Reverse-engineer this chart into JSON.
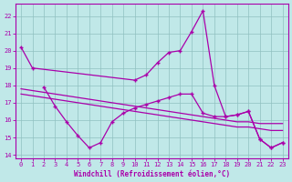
{
  "bg_color": "#c0e8e8",
  "grid_color": "#90c0c0",
  "line_color": "#aa00aa",
  "marker": "+",
  "xlabel": "Windchill (Refroidissement éolien,°C)",
  "ylabel_ticks": [
    14,
    15,
    16,
    17,
    18,
    19,
    20,
    21,
    22
  ],
  "xlim": [
    -0.5,
    23.5
  ],
  "ylim": [
    13.8,
    22.7
  ],
  "xticks": [
    0,
    1,
    2,
    3,
    4,
    5,
    6,
    7,
    8,
    9,
    10,
    11,
    12,
    13,
    14,
    15,
    16,
    17,
    18,
    19,
    20,
    21,
    22,
    23
  ],
  "curve1_x": [
    0,
    1,
    10,
    11,
    12,
    13,
    14,
    15,
    16,
    17,
    18,
    19,
    20,
    21,
    22,
    23
  ],
  "curve1_y": [
    20.2,
    19.0,
    18.3,
    18.6,
    19.3,
    19.9,
    20.0,
    21.1,
    22.3,
    18.0,
    16.2,
    16.3,
    16.5,
    14.9,
    14.4,
    14.7
  ],
  "curve2_x": [
    2,
    3,
    4,
    5,
    6,
    7,
    8,
    9,
    10,
    11,
    12,
    13,
    14,
    15,
    16,
    17,
    18,
    19,
    20,
    21,
    22,
    23
  ],
  "curve2_y": [
    17.9,
    16.8,
    15.9,
    15.1,
    14.4,
    14.7,
    15.9,
    16.4,
    16.7,
    16.9,
    17.1,
    17.3,
    17.5,
    17.5,
    16.4,
    16.2,
    16.2,
    16.3,
    16.5,
    14.9,
    14.4,
    14.7
  ],
  "curve3_x": [
    0,
    1,
    2,
    3,
    4,
    5,
    6,
    7,
    8,
    9,
    10,
    11,
    12,
    13,
    14,
    15,
    16,
    17,
    18,
    19,
    20,
    21,
    22,
    23
  ],
  "curve3_y": [
    17.8,
    17.7,
    17.6,
    17.5,
    17.4,
    17.3,
    17.2,
    17.1,
    17.0,
    16.9,
    16.8,
    16.7,
    16.6,
    16.5,
    16.4,
    16.3,
    16.2,
    16.1,
    16.0,
    15.9,
    15.9,
    15.8,
    15.8,
    15.8
  ],
  "curve4_x": [
    0,
    1,
    2,
    3,
    4,
    5,
    6,
    7,
    8,
    9,
    10,
    11,
    12,
    13,
    14,
    15,
    16,
    17,
    18,
    19,
    20,
    21,
    22,
    23
  ],
  "curve4_y": [
    17.5,
    17.4,
    17.3,
    17.2,
    17.1,
    17.0,
    16.9,
    16.8,
    16.7,
    16.6,
    16.5,
    16.4,
    16.3,
    16.2,
    16.1,
    16.0,
    15.9,
    15.8,
    15.7,
    15.6,
    15.6,
    15.5,
    15.4,
    15.4
  ]
}
